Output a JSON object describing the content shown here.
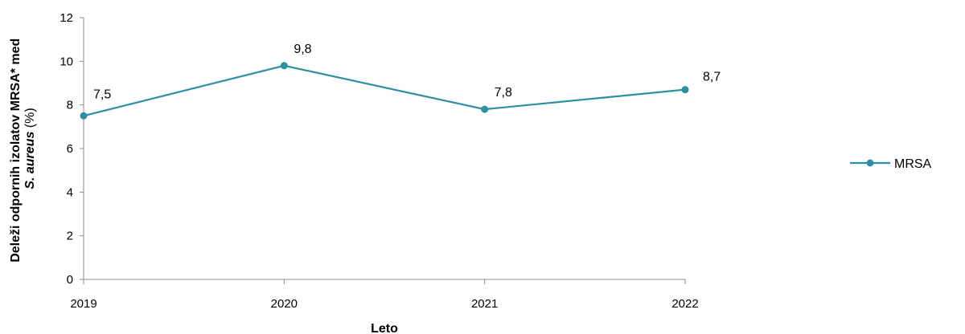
{
  "chart_data": {
    "type": "line",
    "title": "",
    "xlabel": "Leto",
    "ylabel_line1": "Deleži odpornih izolatov MRSA* med",
    "ylabel_line2_italic": "S. aureus",
    "ylabel_line2_rest": " (%)",
    "categories": [
      "2019",
      "2020",
      "2021",
      "2022"
    ],
    "series": [
      {
        "name": "MRSA",
        "values": [
          7.5,
          9.8,
          7.8,
          8.7
        ],
        "data_labels": [
          "7,5",
          "9,8",
          "7,8",
          "8,7"
        ],
        "color": "#2E8FA0"
      }
    ],
    "ylim": [
      0,
      12
    ],
    "yticks": [
      0,
      2,
      4,
      6,
      8,
      10,
      12
    ],
    "grid": false,
    "legend_position": "right"
  }
}
